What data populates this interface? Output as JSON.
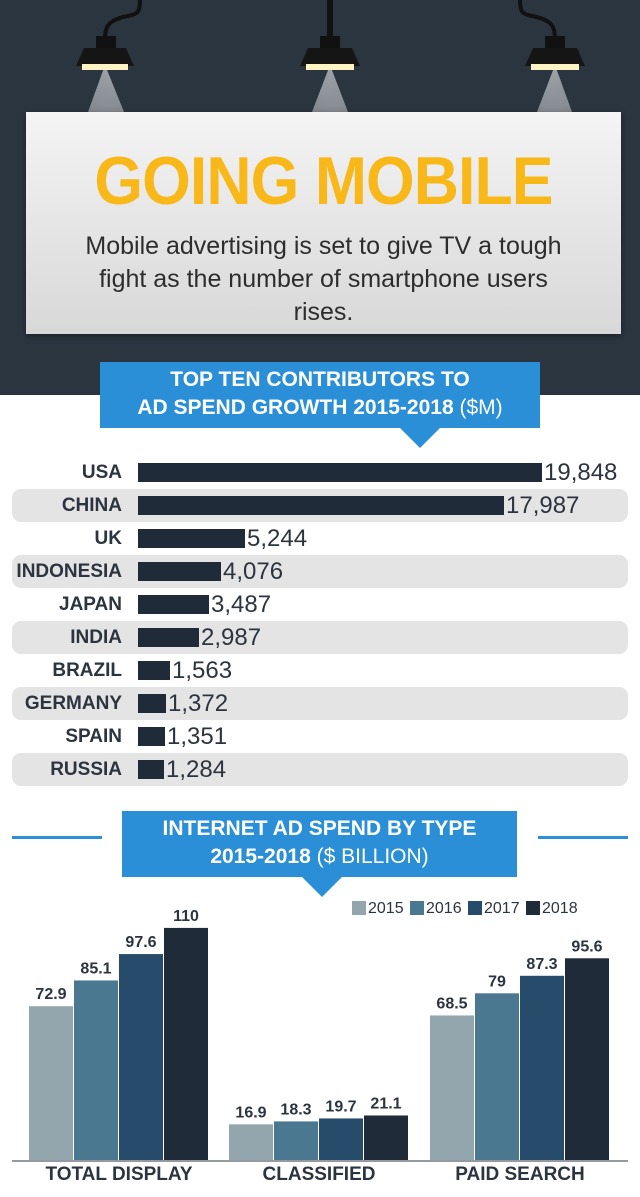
{
  "header": {
    "title": "GOING MOBILE",
    "subtitle": "Mobile advertising is set to give TV a tough fight as the number of smartphone users rises."
  },
  "section1": {
    "title_line1": "TOP TEN CONTRIBUTORS TO",
    "title_line2": "AD SPEND GROWTH 2015-2018",
    "title_unit": "($M)"
  },
  "section2": {
    "title_line1": "INTERNET AD SPEND BY TYPE",
    "title_line2": "2015-2018",
    "title_unit": "($ BILLION)"
  },
  "colors": {
    "accent_blue": "#2a8fd6",
    "title_yellow": "#f9b81a",
    "dark_bar": "#1f2b38",
    "series": [
      "#93a5ad",
      "#4a7891",
      "#274b6a",
      "#1f2b38"
    ]
  },
  "chart_data": [
    {
      "type": "bar",
      "orientation": "horizontal",
      "title": "TOP TEN CONTRIBUTORS TO AD SPEND GROWTH 2015-2018 ($M)",
      "categories": [
        "USA",
        "CHINA",
        "UK",
        "INDONESIA",
        "JAPAN",
        "INDIA",
        "BRAZIL",
        "GERMANY",
        "SPAIN",
        "RUSSIA"
      ],
      "values": [
        19848,
        17987,
        5244,
        4076,
        3487,
        2987,
        1563,
        1372,
        1351,
        1284
      ],
      "value_labels": [
        "19,848",
        "17,987",
        "5,244",
        "4,076",
        "3,487",
        "2,987",
        "1,563",
        "1,372",
        "1,351",
        "1,284"
      ]
    },
    {
      "type": "bar",
      "orientation": "vertical",
      "title": "INTERNET AD SPEND BY TYPE 2015-2018 ($ BILLION)",
      "categories": [
        "TOTAL DISPLAY",
        "CLASSIFIED",
        "PAID SEARCH"
      ],
      "legend": "top-right",
      "series": [
        {
          "name": "2015",
          "values": [
            72.9,
            16.9,
            68.5
          ],
          "labels": [
            "72.9",
            "16.9",
            "68.5"
          ]
        },
        {
          "name": "2016",
          "values": [
            85.1,
            18.3,
            79
          ],
          "labels": [
            "85.1",
            "18.3",
            "79"
          ]
        },
        {
          "name": "2017",
          "values": [
            97.6,
            19.7,
            87.3
          ],
          "labels": [
            "97.6",
            "19.7",
            "87.3"
          ]
        },
        {
          "name": "2018",
          "values": [
            110,
            21.1,
            95.6
          ],
          "labels": [
            "110",
            "21.1",
            "95.6"
          ]
        }
      ]
    }
  ]
}
